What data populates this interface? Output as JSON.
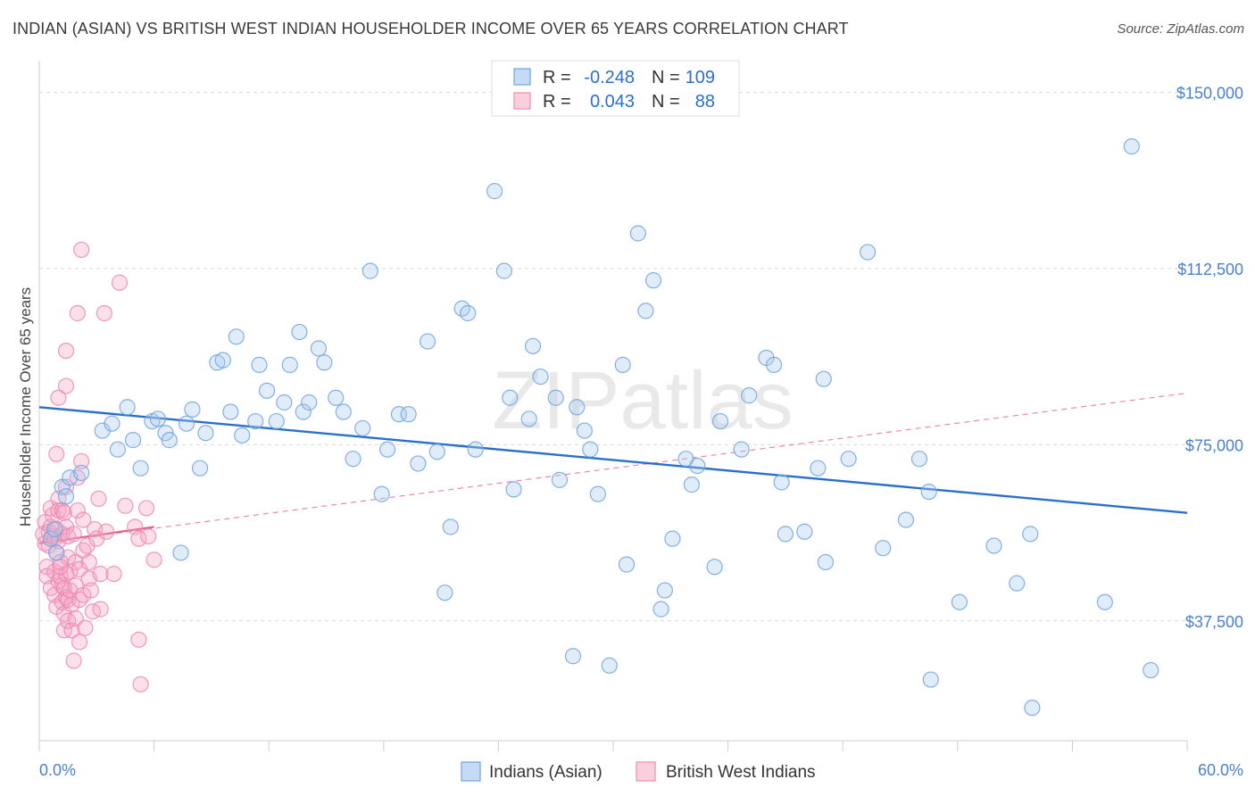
{
  "header": {
    "title": "INDIAN (ASIAN) VS BRITISH WEST INDIAN HOUSEHOLDER INCOME OVER 65 YEARS CORRELATION CHART",
    "source": "Source: ZipAtlas.com"
  },
  "watermark": "ZIPatlas",
  "stats": {
    "r_label": "R =",
    "n_label": "N =",
    "blue": {
      "r": "-0.248",
      "n": "109"
    },
    "pink": {
      "r": "0.043",
      "n": "88"
    }
  },
  "colors": {
    "blue": "#6fa3e0",
    "blue_line": "#2a6fd0",
    "pink": "#f08cb0",
    "pink_line": "#e4608e",
    "axis_text": "#4a7fcf"
  },
  "chart_data": {
    "type": "scatter",
    "title": "INDIAN (ASIAN) VS BRITISH WEST INDIAN HOUSEHOLDER INCOME OVER 65 YEARS CORRELATION CHART",
    "xlabel": "",
    "ylabel": "Householder Income Over 65 years",
    "xlim": [
      0,
      60
    ],
    "ylim": [
      12000,
      156000
    ],
    "x_tick_labels": [
      "0.0%",
      "60.0%"
    ],
    "y_ticks": [
      37500,
      75000,
      112500,
      150000
    ],
    "y_tick_labels": [
      "$37,500",
      "$75,000",
      "$112,500",
      "$150,000"
    ],
    "grid": "horizontal dashed",
    "legend_position": "bottom",
    "series": [
      {
        "name": "Indians (Asian)",
        "color": "#6fa3e0",
        "trend": {
          "x": [
            0,
            60
          ],
          "y": [
            83000,
            60500
          ]
        },
        "points": [
          [
            0.6,
            55000
          ],
          [
            0.8,
            57000
          ],
          [
            0.9,
            52000
          ],
          [
            1.2,
            66000
          ],
          [
            1.4,
            64000
          ],
          [
            1.6,
            68000
          ],
          [
            2.2,
            69000
          ],
          [
            3.3,
            78000
          ],
          [
            3.8,
            79500
          ],
          [
            4.1,
            74000
          ],
          [
            4.6,
            83000
          ],
          [
            4.9,
            76000
          ],
          [
            5.3,
            70000
          ],
          [
            5.9,
            80000
          ],
          [
            6.2,
            80500
          ],
          [
            6.6,
            77500
          ],
          [
            6.8,
            76000
          ],
          [
            7.4,
            52000
          ],
          [
            7.7,
            79500
          ],
          [
            8.0,
            82500
          ],
          [
            8.4,
            70000
          ],
          [
            8.7,
            77500
          ],
          [
            9.3,
            92500
          ],
          [
            9.6,
            93000
          ],
          [
            10.0,
            82000
          ],
          [
            10.3,
            98000
          ],
          [
            10.6,
            77000
          ],
          [
            11.3,
            80000
          ],
          [
            11.5,
            92000
          ],
          [
            11.9,
            86500
          ],
          [
            12.4,
            80000
          ],
          [
            12.8,
            84000
          ],
          [
            13.1,
            92000
          ],
          [
            13.6,
            99000
          ],
          [
            13.8,
            82000
          ],
          [
            14.1,
            84000
          ],
          [
            14.6,
            95500
          ],
          [
            14.9,
            92500
          ],
          [
            15.5,
            85000
          ],
          [
            15.9,
            82000
          ],
          [
            16.4,
            72000
          ],
          [
            16.9,
            78500
          ],
          [
            17.3,
            112000
          ],
          [
            17.9,
            64500
          ],
          [
            18.2,
            74000
          ],
          [
            18.8,
            81500
          ],
          [
            19.3,
            81500
          ],
          [
            19.8,
            71000
          ],
          [
            20.3,
            97000
          ],
          [
            20.8,
            73500
          ],
          [
            21.2,
            43500
          ],
          [
            21.5,
            57500
          ],
          [
            22.1,
            104000
          ],
          [
            22.4,
            103000
          ],
          [
            22.8,
            74000
          ],
          [
            23.8,
            129000
          ],
          [
            24.3,
            112000
          ],
          [
            24.6,
            85000
          ],
          [
            24.8,
            65500
          ],
          [
            25.6,
            80500
          ],
          [
            25.8,
            96000
          ],
          [
            26.2,
            89500
          ],
          [
            27.0,
            85000
          ],
          [
            27.2,
            67500
          ],
          [
            27.9,
            30000
          ],
          [
            28.1,
            83000
          ],
          [
            28.5,
            78000
          ],
          [
            28.8,
            74000
          ],
          [
            29.2,
            64500
          ],
          [
            29.8,
            28000
          ],
          [
            30.5,
            92000
          ],
          [
            30.7,
            49500
          ],
          [
            31.3,
            120000
          ],
          [
            31.7,
            103500
          ],
          [
            32.1,
            110000
          ],
          [
            32.5,
            40000
          ],
          [
            32.7,
            44000
          ],
          [
            33.1,
            55000
          ],
          [
            33.8,
            72000
          ],
          [
            34.1,
            66500
          ],
          [
            34.4,
            70500
          ],
          [
            35.3,
            49000
          ],
          [
            35.6,
            80000
          ],
          [
            36.7,
            74000
          ],
          [
            37.1,
            85500
          ],
          [
            38.0,
            93500
          ],
          [
            38.4,
            92000
          ],
          [
            38.8,
            67000
          ],
          [
            39.0,
            56000
          ],
          [
            40.0,
            56500
          ],
          [
            40.7,
            70000
          ],
          [
            41.0,
            89000
          ],
          [
            41.1,
            50000
          ],
          [
            42.3,
            72000
          ],
          [
            43.3,
            116000
          ],
          [
            44.1,
            53000
          ],
          [
            45.3,
            59000
          ],
          [
            46.0,
            72000
          ],
          [
            46.5,
            65000
          ],
          [
            46.6,
            25000
          ],
          [
            48.1,
            41500
          ],
          [
            49.9,
            53500
          ],
          [
            51.1,
            45500
          ],
          [
            51.8,
            56000
          ],
          [
            51.9,
            19000
          ],
          [
            55.7,
            41500
          ],
          [
            57.1,
            138500
          ],
          [
            58.1,
            27000
          ]
        ]
      },
      {
        "name": "British West Indians",
        "color": "#f08cb0",
        "trend": {
          "x": [
            0,
            6
          ],
          "y": [
            54000,
            57500
          ]
        },
        "trend_extended": {
          "x": [
            0,
            60
          ],
          "y": [
            54000,
            86000
          ]
        },
        "points": [
          [
            0.2,
            56000
          ],
          [
            0.3,
            58500
          ],
          [
            0.3,
            54000
          ],
          [
            0.4,
            49000
          ],
          [
            0.4,
            47000
          ],
          [
            0.5,
            56500
          ],
          [
            0.5,
            53500
          ],
          [
            0.6,
            61500
          ],
          [
            0.6,
            57500
          ],
          [
            0.6,
            44500
          ],
          [
            0.7,
            60000
          ],
          [
            0.7,
            55500
          ],
          [
            0.8,
            55000
          ],
          [
            0.8,
            48000
          ],
          [
            0.8,
            43000
          ],
          [
            0.9,
            73000
          ],
          [
            0.9,
            57000
          ],
          [
            0.9,
            52000
          ],
          [
            0.9,
            40500
          ],
          [
            1.0,
            85000
          ],
          [
            1.0,
            63500
          ],
          [
            1.0,
            61000
          ],
          [
            1.0,
            54500
          ],
          [
            1.0,
            46000
          ],
          [
            1.1,
            50000
          ],
          [
            1.1,
            47000
          ],
          [
            1.2,
            61000
          ],
          [
            1.2,
            56000
          ],
          [
            1.2,
            45000
          ],
          [
            1.2,
            41500
          ],
          [
            1.3,
            60500
          ],
          [
            1.3,
            44500
          ],
          [
            1.3,
            39000
          ],
          [
            1.3,
            35500
          ],
          [
            1.4,
            95000
          ],
          [
            1.4,
            87500
          ],
          [
            1.4,
            66000
          ],
          [
            1.4,
            57500
          ],
          [
            1.4,
            47500
          ],
          [
            1.4,
            42500
          ],
          [
            1.5,
            55500
          ],
          [
            1.5,
            51000
          ],
          [
            1.5,
            42000
          ],
          [
            1.5,
            37500
          ],
          [
            1.6,
            48000
          ],
          [
            1.6,
            44000
          ],
          [
            1.7,
            41000
          ],
          [
            1.7,
            35500
          ],
          [
            1.8,
            56000
          ],
          [
            1.8,
            29000
          ],
          [
            1.9,
            50000
          ],
          [
            1.9,
            45000
          ],
          [
            1.9,
            38000
          ],
          [
            2.0,
            103000
          ],
          [
            2.0,
            68000
          ],
          [
            2.0,
            61000
          ],
          [
            2.1,
            48500
          ],
          [
            2.1,
            42000
          ],
          [
            2.1,
            33000
          ],
          [
            2.2,
            116500
          ],
          [
            2.2,
            71500
          ],
          [
            2.3,
            59000
          ],
          [
            2.3,
            52500
          ],
          [
            2.3,
            43000
          ],
          [
            2.4,
            36000
          ],
          [
            2.5,
            53500
          ],
          [
            2.6,
            50000
          ],
          [
            2.6,
            46500
          ],
          [
            2.7,
            44000
          ],
          [
            2.8,
            39500
          ],
          [
            2.9,
            57000
          ],
          [
            3.0,
            55000
          ],
          [
            3.1,
            63500
          ],
          [
            3.2,
            47500
          ],
          [
            3.2,
            40000
          ],
          [
            3.4,
            103000
          ],
          [
            3.5,
            56500
          ],
          [
            3.9,
            47500
          ],
          [
            4.2,
            109500
          ],
          [
            4.5,
            62000
          ],
          [
            5.0,
            57500
          ],
          [
            5.2,
            55000
          ],
          [
            5.2,
            33500
          ],
          [
            5.3,
            24000
          ],
          [
            5.6,
            61500
          ],
          [
            5.7,
            55500
          ],
          [
            6.0,
            50500
          ],
          [
            1.1,
            49000
          ]
        ]
      }
    ]
  },
  "legend": {
    "items": [
      {
        "label": "Indians (Asian)",
        "color": "blue"
      },
      {
        "label": "British West Indians",
        "color": "pink"
      }
    ]
  }
}
